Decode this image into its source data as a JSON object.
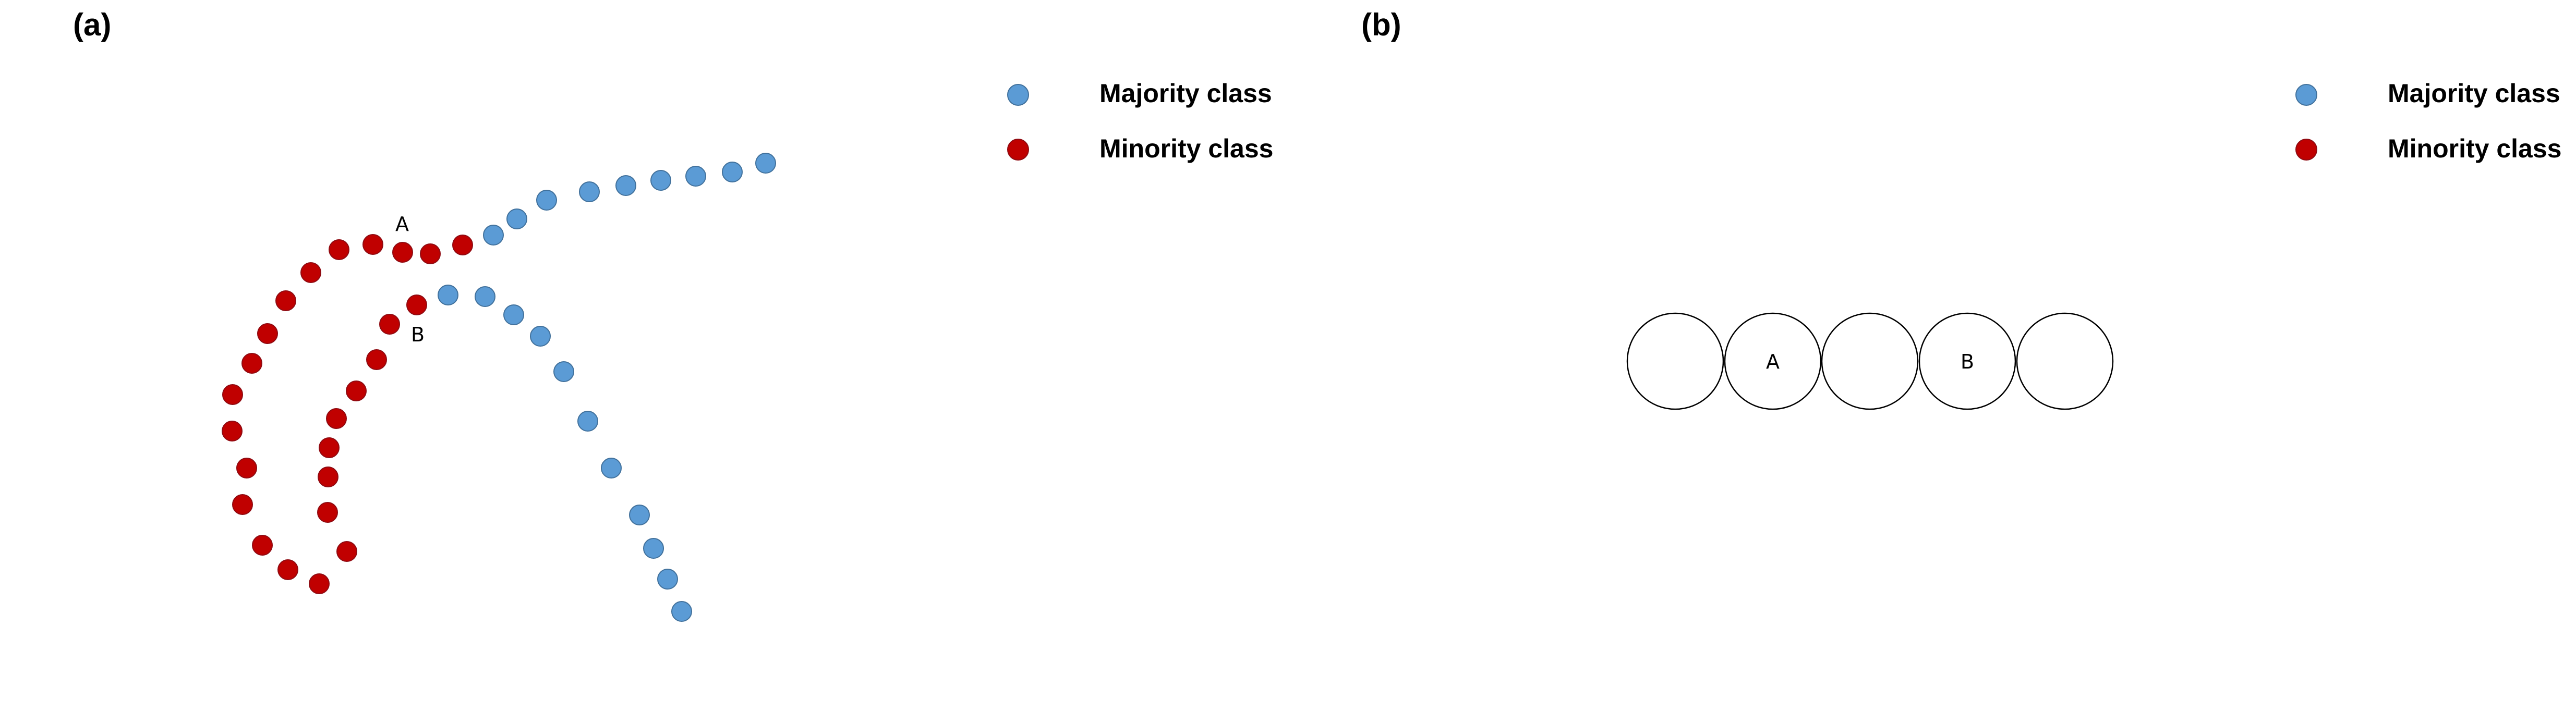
{
  "colors": {
    "majority": "#5b9bd5",
    "minority": "#c00000"
  },
  "panels": {
    "a": {
      "label": "(a)",
      "legend": {
        "majority": "Majority class",
        "minority": "Minority class"
      },
      "point_labels": {
        "A": "A",
        "B": "B"
      }
    },
    "b": {
      "label": "(b)",
      "legend": {
        "majority": "Majority class",
        "minority": "Minority class"
      },
      "cells": [
        "",
        "A",
        "",
        "B",
        ""
      ]
    }
  }
}
